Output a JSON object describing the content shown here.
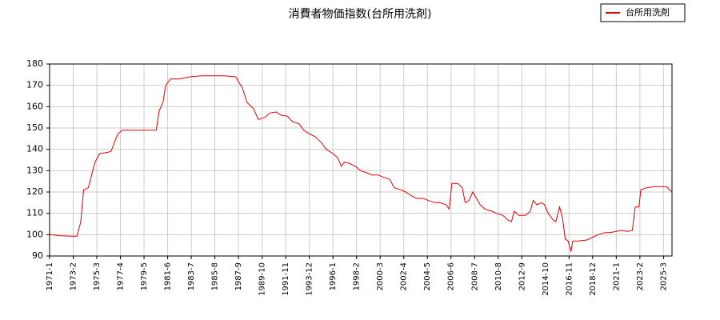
{
  "chart_data": {
    "type": "line",
    "title": "消費者物価指数(台所用洗剤)",
    "x": [
      "1971-1",
      "1972-1",
      "1973-1",
      "1973-6",
      "1973-10",
      "1974-1",
      "1974-6",
      "1975-1",
      "1975-6",
      "1976-1",
      "1976-6",
      "1977-1",
      "1977-6",
      "1978-1",
      "1979-1",
      "1980-1",
      "1980-6",
      "1980-9",
      "1981-1",
      "1981-4",
      "1981-9",
      "1982-6",
      "1983-6",
      "1984-6",
      "1985-6",
      "1986-6",
      "1987-6",
      "1987-10",
      "1988-1",
      "1988-6",
      "1989-1",
      "1989-6",
      "1990-1",
      "1990-6",
      "1991-1",
      "1991-6",
      "1992-1",
      "1992-6",
      "1993-1",
      "1993-6",
      "1994-1",
      "1994-6",
      "1995-1",
      "1995-6",
      "1996-1",
      "1996-6",
      "1996-10",
      "1997-1",
      "1997-6",
      "1998-1",
      "1998-6",
      "1999-1",
      "1999-6",
      "2000-1",
      "2000-6",
      "2001-1",
      "2001-6",
      "2002-1",
      "2002-6",
      "2003-1",
      "2003-6",
      "2004-1",
      "2004-6",
      "2005-1",
      "2005-6",
      "2006-1",
      "2006-4",
      "2006-7",
      "2007-1",
      "2007-6",
      "2007-9",
      "2008-1",
      "2008-5",
      "2008-9",
      "2009-1",
      "2009-6",
      "2010-1",
      "2010-6",
      "2011-1",
      "2011-6",
      "2011-10",
      "2012-1",
      "2012-6",
      "2013-1",
      "2013-6",
      "2013-9",
      "2014-1",
      "2014-6",
      "2014-9",
      "2015-1",
      "2015-6",
      "2015-9",
      "2016-1",
      "2016-4",
      "2016-7",
      "2016-10",
      "2017-1",
      "2017-3",
      "2017-9",
      "2018-6",
      "2019-1",
      "2019-6",
      "2020-1",
      "2020-6",
      "2021-1",
      "2021-6",
      "2022-1",
      "2022-6",
      "2022-9",
      "2023-1",
      "2023-3",
      "2023-9",
      "2024-6",
      "2025-6",
      "2025-12"
    ],
    "series": [
      {
        "name": "台所用洗剤",
        "color": "#dd0000",
        "values": [
          100,
          99.5,
          99.3,
          99.3,
          106,
          121,
          122,
          134,
          138,
          138.5,
          139,
          147,
          149,
          149,
          149,
          149,
          149,
          158,
          162,
          170,
          173,
          173,
          174,
          174.5,
          174.5,
          174.5,
          174,
          171,
          169,
          162,
          159,
          154,
          155,
          157,
          157.5,
          156,
          155.5,
          153,
          152,
          149,
          147,
          146,
          143,
          140,
          138,
          136,
          132,
          134,
          133.5,
          132,
          130,
          129,
          128,
          128,
          127,
          126,
          122,
          121,
          120,
          118,
          117,
          117,
          116,
          115,
          115,
          114,
          112,
          124,
          124,
          122,
          115,
          116,
          120,
          117,
          114,
          112,
          111,
          110,
          109,
          107,
          106,
          111,
          109,
          109,
          111,
          116,
          114,
          115,
          114,
          110,
          107,
          106,
          113,
          108,
          98,
          97,
          92,
          97,
          97,
          97.5,
          99,
          100,
          101,
          101,
          101.5,
          102,
          101.5,
          102,
          113,
          113,
          121,
          122,
          122.5,
          122.5,
          120
        ]
      }
    ],
    "xlim": [
      "1971-1",
      "2025-12"
    ],
    "xticks": [
      "1971-1",
      "1973-2",
      "1975-3",
      "1977-4",
      "1979-5",
      "1981-6",
      "1983-7",
      "1985-8",
      "1987-9",
      "1989-10",
      "1991-11",
      "1993-12",
      "1996-1",
      "1998-2",
      "2000-3",
      "2002-4",
      "2004-5",
      "2006-6",
      "2008-7",
      "2010-8",
      "2012-9",
      "2014-10",
      "2016-11",
      "2018-12",
      "2021-1",
      "2023-2",
      "2025-3"
    ],
    "ylim": [
      90,
      180
    ],
    "yticks": [
      90,
      100,
      110,
      120,
      130,
      140,
      150,
      160,
      170,
      180
    ],
    "grid": true,
    "legend": "upper right"
  }
}
